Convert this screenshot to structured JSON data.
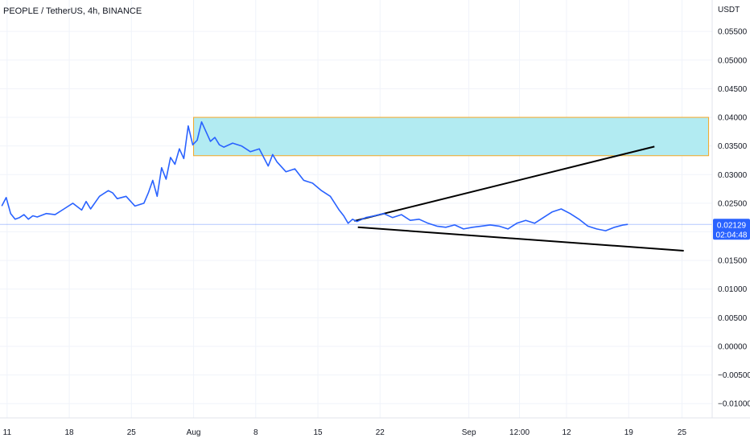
{
  "app": {
    "title": "PEOPLE / TetherUS, 4h, BINANCE",
    "currency": "USDT"
  },
  "price_label": {
    "price": "0.02129",
    "countdown": "02:04:48",
    "color": "#2962ff"
  },
  "chart_data": {
    "type": "line",
    "title": "PEOPLE / TetherUS, 4h, BINANCE",
    "ylabel": "USDT",
    "ylim": [
      -0.0125,
      0.0605
    ],
    "xlim": [
      -0.2,
      80
    ],
    "grid": true,
    "y_ticks": [
      0.055,
      0.05,
      0.045,
      0.04,
      0.035,
      0.03,
      0.025,
      0.02,
      0.015,
      0.01,
      0.005,
      0.0,
      -0.005,
      -0.01
    ],
    "y_tick_labels": [
      "0.05500",
      "0.05000",
      "0.04500",
      "0.04000",
      "0.03500",
      "0.03000",
      "0.02500",
      "0.02000",
      "0.01500",
      "0.01000",
      "0.00500",
      "0.00000",
      "−0.00500",
      "−0.01000"
    ],
    "x_ticks": [
      {
        "label": "11",
        "x": 0.6
      },
      {
        "label": "18",
        "x": 7.6
      },
      {
        "label": "25",
        "x": 14.6
      },
      {
        "label": "Aug",
        "x": 21.6
      },
      {
        "label": "8",
        "x": 28.6
      },
      {
        "label": "15",
        "x": 35.6
      },
      {
        "label": "22",
        "x": 42.6
      },
      {
        "label": "Sep",
        "x": 52.6
      },
      {
        "label": "12:00",
        "x": 58.3
      },
      {
        "label": "12",
        "x": 63.6
      },
      {
        "label": "19",
        "x": 70.6
      },
      {
        "label": "25",
        "x": 76.6
      }
    ],
    "series": [
      {
        "color": "#2962ff",
        "x": [
          0,
          0.5,
          1,
          1.5,
          2,
          2.5,
          3,
          3.5,
          4,
          5,
          6,
          7,
          8,
          9,
          9.5,
          10,
          11,
          12,
          12.5,
          13,
          14,
          15,
          16,
          16.5,
          17,
          17.5,
          18,
          18.5,
          19,
          19.5,
          20,
          20.5,
          21,
          21.5,
          22,
          22.5,
          23,
          23.5,
          24,
          24.5,
          25,
          26,
          27,
          28,
          29,
          30,
          30.5,
          31,
          32,
          33,
          34,
          35,
          36,
          37,
          38,
          38.5,
          39,
          39.5,
          40,
          41,
          42,
          43,
          44,
          45,
          46,
          47,
          48,
          49,
          50,
          51,
          52,
          53,
          54,
          55,
          56,
          57,
          58,
          59,
          60,
          61,
          62,
          63,
          64,
          65,
          66,
          67,
          68,
          69,
          70,
          70.5
        ],
        "y": [
          0.0245,
          0.026,
          0.0232,
          0.0222,
          0.0225,
          0.023,
          0.0222,
          0.0228,
          0.0226,
          0.0232,
          0.023,
          0.024,
          0.025,
          0.0238,
          0.0253,
          0.024,
          0.0262,
          0.0272,
          0.0268,
          0.0258,
          0.0262,
          0.0245,
          0.025,
          0.0268,
          0.029,
          0.0262,
          0.0312,
          0.0292,
          0.033,
          0.0318,
          0.0345,
          0.0328,
          0.0385,
          0.0352,
          0.036,
          0.0392,
          0.0375,
          0.0358,
          0.0365,
          0.0352,
          0.0348,
          0.0355,
          0.035,
          0.034,
          0.0345,
          0.0315,
          0.0335,
          0.0322,
          0.0305,
          0.031,
          0.029,
          0.0285,
          0.0272,
          0.0262,
          0.0238,
          0.0228,
          0.0215,
          0.0222,
          0.0218,
          0.0225,
          0.0228,
          0.0232,
          0.0225,
          0.023,
          0.022,
          0.0222,
          0.0215,
          0.021,
          0.0208,
          0.0212,
          0.0205,
          0.0208,
          0.021,
          0.0212,
          0.021,
          0.0205,
          0.0215,
          0.022,
          0.0215,
          0.0225,
          0.0235,
          0.024,
          0.0232,
          0.0222,
          0.021,
          0.0205,
          0.0202,
          0.0208,
          0.0212,
          0.0213
        ]
      }
    ],
    "current_price": 0.02129,
    "annotations": [
      {
        "type": "rectangle",
        "x0": 21.6,
        "x1": 79.6,
        "y0": 0.0333,
        "y1": 0.04,
        "fill": "#b2ebf2",
        "stroke": "#f5a623"
      },
      {
        "type": "trendline",
        "x0": 39.7,
        "y0": 0.0219,
        "x1": 73.5,
        "y1": 0.0349,
        "color": "#000000"
      },
      {
        "type": "trendline",
        "x0": 40.1,
        "y0": 0.0208,
        "x1": 76.8,
        "y1": 0.0167,
        "color": "#000000"
      }
    ]
  }
}
